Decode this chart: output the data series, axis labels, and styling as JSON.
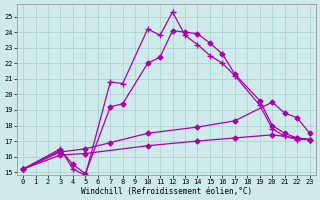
{
  "xlabel": "Windchill (Refroidissement éolien,°C)",
  "background_color": "#ceeaea",
  "xlim": [
    -0.5,
    23.5
  ],
  "ylim": [
    14.8,
    25.8
  ],
  "yticks": [
    15,
    16,
    17,
    18,
    19,
    20,
    21,
    22,
    23,
    24,
    25
  ],
  "xticks": [
    0,
    1,
    2,
    3,
    4,
    5,
    6,
    7,
    8,
    9,
    10,
    11,
    12,
    13,
    14,
    15,
    16,
    17,
    18,
    19,
    20,
    21,
    22,
    23
  ],
  "line_color": "#aa00aa",
  "line1_x": [
    0,
    3,
    4,
    5,
    7,
    8,
    10,
    11,
    12,
    13,
    14,
    15,
    16,
    17,
    19,
    20,
    21,
    22,
    23
  ],
  "line1_y": [
    15.2,
    16.5,
    15.2,
    14.8,
    20.8,
    20.7,
    24.2,
    23.8,
    25.3,
    23.8,
    23.2,
    22.5,
    22.0,
    21.2,
    19.3,
    17.8,
    17.3,
    17.1,
    17.1
  ],
  "line2_x": [
    0,
    3,
    4,
    5,
    7,
    8,
    10,
    11,
    12,
    13,
    14,
    15,
    16,
    17,
    19,
    20,
    21,
    22,
    23
  ],
  "line2_y": [
    15.2,
    16.4,
    15.5,
    14.9,
    19.2,
    19.4,
    22.0,
    22.4,
    24.1,
    24.0,
    23.9,
    23.3,
    22.6,
    21.3,
    19.6,
    18.0,
    17.5,
    17.2,
    17.1
  ],
  "line3_x": [
    0,
    3,
    5,
    7,
    10,
    14,
    17,
    20,
    21,
    22,
    23
  ],
  "line3_y": [
    15.2,
    16.3,
    16.5,
    16.9,
    17.5,
    17.9,
    18.3,
    19.5,
    18.8,
    18.5,
    17.5
  ],
  "line4_x": [
    0,
    3,
    5,
    10,
    14,
    17,
    20,
    22,
    23
  ],
  "line4_y": [
    15.2,
    16.1,
    16.2,
    16.7,
    17.0,
    17.2,
    17.4,
    17.2,
    17.1
  ]
}
